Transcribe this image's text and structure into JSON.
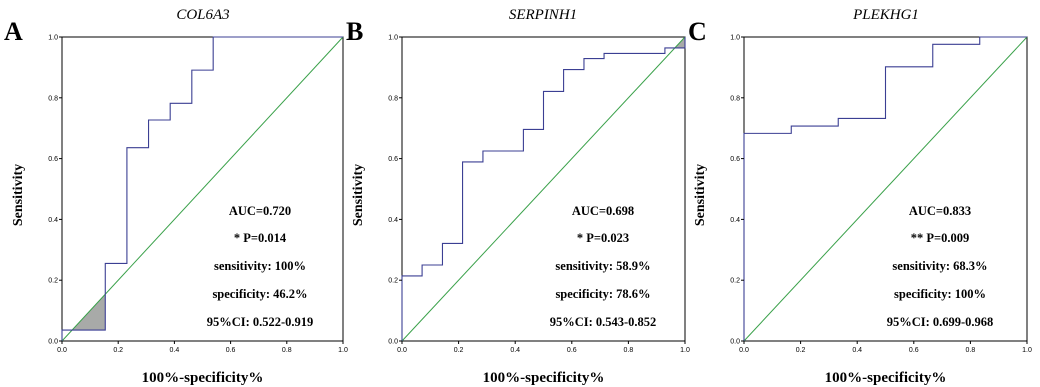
{
  "chart_data": [
    {
      "type": "line",
      "panel_letter": "A",
      "title": "COL6A3",
      "xlabel": "100%-specificity%",
      "ylabel": "Sensitivity",
      "xlim": [
        0,
        1
      ],
      "ylim": [
        0,
        1
      ],
      "ticks": [
        "0.0",
        "0.2",
        "0.4",
        "0.6",
        "0.8",
        "1.0"
      ],
      "series": [
        {
          "x": [
            0,
            0,
            0.154,
            0.154,
            0.231,
            0.231,
            0.308,
            0.308,
            0.385,
            0.385,
            0.462,
            0.462,
            0.538,
            0.538,
            1.0
          ],
          "y": [
            0,
            0.036,
            0.036,
            0.255,
            0.255,
            0.636,
            0.636,
            0.727,
            0.727,
            0.782,
            0.782,
            0.891,
            0.891,
            1.0,
            1.0
          ]
        }
      ],
      "annotations": [
        "AUC=0.720",
        "* P=0.014",
        "sensitivity: 100%",
        "specificity: 46.2%",
        "95%CI: 0.522-0.919"
      ]
    },
    {
      "type": "line",
      "panel_letter": "B",
      "title": "SERPINH1",
      "xlabel": "100%-specificity%",
      "ylabel": "Sensitivity",
      "xlim": [
        0,
        1
      ],
      "ylim": [
        0,
        1
      ],
      "ticks": [
        "0.0",
        "0.2",
        "0.4",
        "0.6",
        "0.8",
        "1.0"
      ],
      "series": [
        {
          "x": [
            0,
            0,
            0.071,
            0.071,
            0.143,
            0.143,
            0.214,
            0.214,
            0.286,
            0.286,
            0.429,
            0.429,
            0.5,
            0.5,
            0.571,
            0.571,
            0.643,
            0.643,
            0.714,
            0.714,
            0.929,
            0.929,
            1.0,
            1.0
          ],
          "y": [
            0,
            0.214,
            0.214,
            0.25,
            0.25,
            0.321,
            0.321,
            0.589,
            0.589,
            0.625,
            0.625,
            0.696,
            0.696,
            0.821,
            0.821,
            0.893,
            0.893,
            0.929,
            0.929,
            0.946,
            0.946,
            0.964,
            0.964,
            1.0
          ]
        }
      ],
      "annotations": [
        "AUC=0.698",
        "* P=0.023",
        "sensitivity: 58.9%",
        "specificity: 78.6%",
        "95%CI: 0.543-0.852"
      ]
    },
    {
      "type": "line",
      "panel_letter": "C",
      "title": "PLEKHG1",
      "xlabel": "100%-specificity%",
      "ylabel": "Sensitivity",
      "xlim": [
        0,
        1
      ],
      "ylim": [
        0,
        1
      ],
      "ticks": [
        "0.0",
        "0.2",
        "0.4",
        "0.6",
        "0.8",
        "1.0"
      ],
      "series": [
        {
          "x": [
            0,
            0,
            0.167,
            0.167,
            0.333,
            0.333,
            0.5,
            0.5,
            0.667,
            0.667,
            0.833,
            0.833,
            1.0
          ],
          "y": [
            0,
            0.683,
            0.683,
            0.707,
            0.707,
            0.732,
            0.732,
            0.902,
            0.902,
            0.976,
            0.976,
            1.0,
            1.0
          ]
        }
      ],
      "annotations": [
        "AUC=0.833",
        "** P=0.009",
        "sensitivity: 68.3%",
        "specificity: 100%",
        "95%CI: 0.699-0.968"
      ]
    }
  ],
  "colors": {
    "roc_curve": "#3b3f93",
    "reference_line": "#3aa14a",
    "axes": "#000000",
    "fill": "#a8aaa8"
  }
}
